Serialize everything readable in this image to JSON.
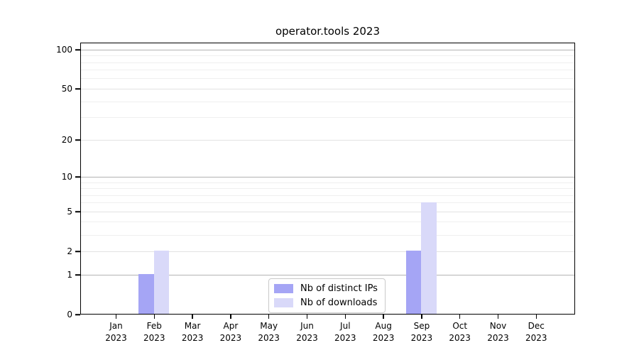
{
  "title": "operator.tools 2023",
  "legend": {
    "entries": [
      {
        "label": "Nb of distinct IPs",
        "color": "#a5a5f5"
      },
      {
        "label": "Nb of downloads",
        "color": "#d9d9f9"
      }
    ]
  },
  "chart_data": {
    "type": "bar",
    "title": "operator.tools 2023",
    "x_categories": [
      {
        "month": "Jan",
        "year": "2023"
      },
      {
        "month": "Feb",
        "year": "2023"
      },
      {
        "month": "Mar",
        "year": "2023"
      },
      {
        "month": "Apr",
        "year": "2023"
      },
      {
        "month": "May",
        "year": "2023"
      },
      {
        "month": "Jun",
        "year": "2023"
      },
      {
        "month": "Jul",
        "year": "2023"
      },
      {
        "month": "Aug",
        "year": "2023"
      },
      {
        "month": "Sep",
        "year": "2023"
      },
      {
        "month": "Oct",
        "year": "2023"
      },
      {
        "month": "Nov",
        "year": "2023"
      },
      {
        "month": "Dec",
        "year": "2023"
      }
    ],
    "series": [
      {
        "name": "Nb of distinct IPs",
        "color": "#a5a5f5",
        "values": [
          0,
          1,
          0,
          0,
          0,
          0,
          0,
          0,
          2,
          0,
          0,
          0
        ]
      },
      {
        "name": "Nb of downloads",
        "color": "#d9d9f9",
        "values": [
          0,
          2,
          0,
          0,
          0,
          0,
          0,
          0,
          6,
          0,
          0,
          0
        ]
      }
    ],
    "y_axis": {
      "scale": "log10(1+x)",
      "tick_values": [
        0,
        1,
        2,
        5,
        10,
        20,
        50,
        100
      ],
      "tick_labels": [
        "0",
        "1",
        "2",
        "5",
        "10",
        "20",
        "50",
        "100"
      ],
      "major_grid_values": [
        1,
        10,
        100
      ],
      "mid_grid_values": [
        2,
        5,
        20,
        50
      ],
      "minor_grid_values": [
        3,
        4,
        6,
        7,
        8,
        9,
        30,
        40,
        60,
        70,
        80,
        90
      ]
    },
    "legend_entries": [
      "Nb of distinct IPs",
      "Nb of downloads"
    ],
    "legend_position": "bottom-center",
    "grid": true
  }
}
